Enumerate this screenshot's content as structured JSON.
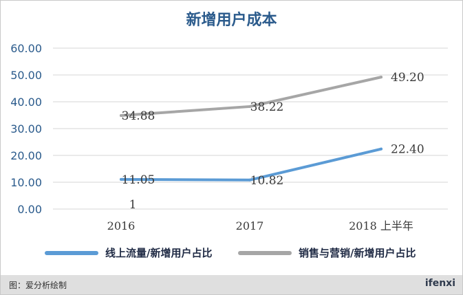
{
  "chart_data": {
    "type": "line",
    "title": "新增用户成本",
    "categories": [
      "2016",
      "2017",
      "2018 上半年"
    ],
    "ylim": [
      0,
      60
    ],
    "yticks": [
      "0.00",
      "10.00",
      "20.00",
      "30.00",
      "40.00",
      "50.00",
      "60.00"
    ],
    "grid": true,
    "legend_position": "bottom",
    "series": [
      {
        "name": "线上流量/新增用户占比",
        "values": [
          11.05,
          10.82,
          22.4
        ],
        "labels": [
          "11.05",
          "10.82",
          "22.40"
        ],
        "color": "#5b9bd5"
      },
      {
        "name": "销售与营销/新增用户占比",
        "values": [
          34.88,
          38.22,
          49.2
        ],
        "labels": [
          "34.88",
          "38.22",
          "49.20"
        ],
        "color": "#a6a6a6"
      }
    ],
    "annotations": [
      "1"
    ]
  },
  "footer": {
    "source": "图：爱分析绘制",
    "brand": "ifenxi"
  }
}
